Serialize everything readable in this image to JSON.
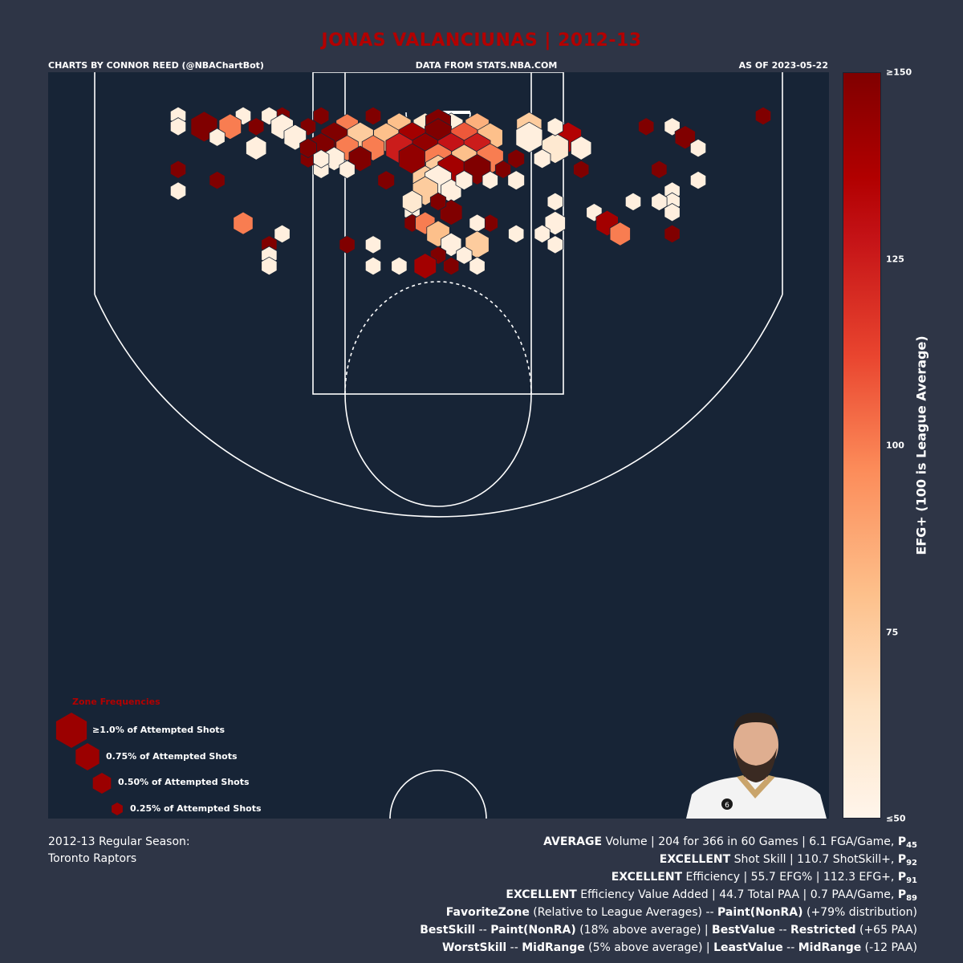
{
  "header": {
    "title": "JONAS VALANCIUNAS | 2012-13",
    "credit_left": "CHARTS BY CONNOR REED (@NBAChartBot)",
    "credit_center": "DATA FROM STATS.NBA.COM",
    "credit_right": "AS OF 2023-05-22"
  },
  "colorbar": {
    "label": "EFG+ (100 is League Average)",
    "ticks": [
      {
        "value": 150,
        "text": "≥150"
      },
      {
        "value": 125,
        "text": "125"
      },
      {
        "value": 100,
        "text": "100"
      },
      {
        "value": 75,
        "text": "75"
      },
      {
        "value": 50,
        "text": "≤50"
      }
    ],
    "range": [
      50,
      150
    ]
  },
  "legend": {
    "title": "Zone Frequencies",
    "items": [
      {
        "label": "≥1.0% of Attempted Shots",
        "freq": 1.0
      },
      {
        "label": "0.75% of Attempted Shots",
        "freq": 0.75
      },
      {
        "label": "0.50% of Attempted Shots",
        "freq": 0.5
      },
      {
        "label": "0.25% of Attempted Shots",
        "freq": 0.25
      }
    ],
    "color": "#9b0000"
  },
  "footer": {
    "season_line1": "2012-13 Regular Season:",
    "season_line2": "Toronto Raptors"
  },
  "stats": {
    "l1": {
      "b1": "AVERAGE",
      "t1": " Volume | 204 for 366 in 60 Games | 6.1 FGA/Game, ",
      "p": "P",
      "sub": "45"
    },
    "l2": {
      "b1": "EXCELLENT",
      "t1": " Shot Skill | 110.7 ShotSkill+, ",
      "p": "P",
      "sub": "92"
    },
    "l3": {
      "b1": "EXCELLENT",
      "t1": " Efficiency | 55.7 EFG% | 112.3 EFG+, ",
      "p": "P",
      "sub": "91"
    },
    "l4": {
      "b1": "EXCELLENT",
      "t1": " Efficiency Value Added | 44.7 Total PAA | 0.7 PAA/Game, ",
      "p": "P",
      "sub": "89"
    },
    "l5": {
      "b1": "FavoriteZone",
      "t1": " (Relative to League Averages) -- ",
      "b2": "Paint(NonRA)",
      "t2": " (+79% distribution)"
    },
    "l6": {
      "b1": "BestSkill",
      "t1": " -- ",
      "b2": "Paint(NonRA)",
      "t2": " (18% above average) | ",
      "b3": "BestValue",
      "t3": " -- ",
      "b4": "Restricted",
      "t4": " (+65 PAA)"
    },
    "l7": {
      "b1": "WorstSkill",
      "t1": " -- ",
      "b2": "MidRange",
      "t2": " (5% above average) | ",
      "b3": "LeastValue",
      "t3": " -- ",
      "b4": "MidRange",
      "t4": " (-12 PAA)"
    }
  },
  "colors": {
    "background": "#2e3546",
    "court": "#172436",
    "lines": "#ffffff",
    "title": "#b30000"
  },
  "chart_data": {
    "type": "heatmap",
    "subtype": "hexbin shot chart",
    "title": "JONAS VALANCIUNAS | 2012-13",
    "color_metric": "EFG+",
    "size_metric": "share of attempted shots (%)",
    "hexes": [
      {
        "x": 0,
        "y": 285,
        "f": 0.12,
        "v": 150
      },
      {
        "x": -10,
        "y": 270,
        "f": 0.8,
        "v": 62
      },
      {
        "x": 10,
        "y": 270,
        "f": 0.8,
        "v": 55
      },
      {
        "x": -30,
        "y": 270,
        "f": 0.8,
        "v": 80
      },
      {
        "x": 30,
        "y": 270,
        "f": 0.8,
        "v": 85
      },
      {
        "x": 0,
        "y": 275,
        "f": 0.9,
        "v": 150
      },
      {
        "x": 0,
        "y": 260,
        "f": 1.0,
        "v": 155
      },
      {
        "x": -20,
        "y": 255,
        "f": 1.0,
        "v": 140
      },
      {
        "x": 20,
        "y": 255,
        "f": 1.0,
        "v": 108
      },
      {
        "x": -40,
        "y": 255,
        "f": 0.9,
        "v": 80
      },
      {
        "x": 40,
        "y": 255,
        "f": 0.9,
        "v": 80
      },
      {
        "x": -10,
        "y": 240,
        "f": 1.0,
        "v": 145
      },
      {
        "x": 10,
        "y": 240,
        "f": 1.0,
        "v": 128
      },
      {
        "x": -30,
        "y": 240,
        "f": 1.0,
        "v": 125
      },
      {
        "x": 30,
        "y": 240,
        "f": 1.0,
        "v": 125
      },
      {
        "x": -20,
        "y": 225,
        "f": 1.0,
        "v": 145
      },
      {
        "x": 0,
        "y": 225,
        "f": 1.0,
        "v": 100
      },
      {
        "x": 20,
        "y": 225,
        "f": 0.9,
        "v": 80
      },
      {
        "x": 40,
        "y": 225,
        "f": 1.0,
        "v": 100
      },
      {
        "x": 0,
        "y": 210,
        "f": 0.9,
        "v": 75
      },
      {
        "x": 10,
        "y": 210,
        "f": 1.0,
        "v": 140
      },
      {
        "x": 30,
        "y": 210,
        "f": 1.0,
        "v": 155
      },
      {
        "x": -10,
        "y": 195,
        "f": 0.9,
        "v": 75
      },
      {
        "x": 0,
        "y": 195,
        "f": 1.0,
        "v": 55
      },
      {
        "x": -10,
        "y": 180,
        "f": 0.9,
        "v": 75
      },
      {
        "x": 10,
        "y": 180,
        "f": 0.6,
        "v": 55
      },
      {
        "x": -20,
        "y": 165,
        "f": 0.55,
        "v": 60
      },
      {
        "x": 10,
        "y": 150,
        "f": 0.7,
        "v": 150
      },
      {
        "x": -70,
        "y": 270,
        "f": 0.7,
        "v": 100
      },
      {
        "x": 70,
        "y": 270,
        "f": 0.9,
        "v": 75
      },
      {
        "x": -60,
        "y": 255,
        "f": 1.0,
        "v": 75
      },
      {
        "x": 70,
        "y": 255,
        "f": 1.0,
        "v": 55
      },
      {
        "x": -80,
        "y": 255,
        "f": 1.0,
        "v": 150
      },
      {
        "x": 100,
        "y": 255,
        "f": 1.0,
        "v": 135
      },
      {
        "x": -90,
        "y": 240,
        "f": 1.0,
        "v": 150
      },
      {
        "x": -70,
        "y": 240,
        "f": 0.7,
        "v": 100
      },
      {
        "x": -50,
        "y": 240,
        "f": 0.7,
        "v": 100
      },
      {
        "x": 90,
        "y": 240,
        "f": 1.0,
        "v": 60
      },
      {
        "x": 110,
        "y": 240,
        "f": 0.6,
        "v": 55
      },
      {
        "x": -60,
        "y": 225,
        "f": 0.7,
        "v": 150
      },
      {
        "x": 60,
        "y": 225,
        "f": 0.4,
        "v": 150
      },
      {
        "x": -80,
        "y": 225,
        "f": 0.6,
        "v": 55
      },
      {
        "x": -100,
        "y": 225,
        "f": 0.35,
        "v": 150
      },
      {
        "x": 80,
        "y": 225,
        "f": 0.4,
        "v": 55
      },
      {
        "x": 50,
        "y": 210,
        "f": 0.35,
        "v": 150
      },
      {
        "x": 110,
        "y": 210,
        "f": 0.35,
        "v": 150
      },
      {
        "x": -90,
        "y": 210,
        "f": 0.35,
        "v": 55
      },
      {
        "x": -70,
        "y": 210,
        "f": 0.35,
        "v": 55
      },
      {
        "x": -40,
        "y": 195,
        "f": 0.4,
        "v": 150
      },
      {
        "x": 20,
        "y": 195,
        "f": 0.4,
        "v": 55
      },
      {
        "x": 40,
        "y": 195,
        "f": 0.35,
        "v": 55
      },
      {
        "x": 60,
        "y": 195,
        "f": 0.4,
        "v": 55
      },
      {
        "x": -150,
        "y": 285,
        "f": 0.35,
        "v": 55
      },
      {
        "x": -120,
        "y": 285,
        "f": 0.35,
        "v": 150
      },
      {
        "x": -130,
        "y": 285,
        "f": 0.35,
        "v": 55
      },
      {
        "x": -90,
        "y": 285,
        "f": 0.35,
        "v": 150
      },
      {
        "x": -50,
        "y": 285,
        "f": 0.35,
        "v": 150
      },
      {
        "x": -200,
        "y": 285,
        "f": 0.35,
        "v": 55
      },
      {
        "x": -180,
        "y": 270,
        "f": 1.0,
        "v": 150
      },
      {
        "x": -160,
        "y": 270,
        "f": 0.7,
        "v": 100
      },
      {
        "x": -140,
        "y": 270,
        "f": 0.35,
        "v": 150
      },
      {
        "x": -120,
        "y": 270,
        "f": 0.7,
        "v": 55
      },
      {
        "x": -100,
        "y": 270,
        "f": 0.35,
        "v": 150
      },
      {
        "x": -200,
        "y": 270,
        "f": 0.35,
        "v": 55
      },
      {
        "x": -170,
        "y": 255,
        "f": 0.35,
        "v": 55
      },
      {
        "x": -110,
        "y": 255,
        "f": 0.7,
        "v": 55
      },
      {
        "x": -140,
        "y": 240,
        "f": 0.6,
        "v": 55
      },
      {
        "x": -100,
        "y": 240,
        "f": 0.4,
        "v": 150
      },
      {
        "x": -90,
        "y": 225,
        "f": 0.35,
        "v": 55
      },
      {
        "x": -200,
        "y": 210,
        "f": 0.35,
        "v": 150
      },
      {
        "x": -170,
        "y": 195,
        "f": 0.35,
        "v": 150
      },
      {
        "x": -200,
        "y": 180,
        "f": 0.35,
        "v": 55
      },
      {
        "x": 250,
        "y": 285,
        "f": 0.35,
        "v": 150
      },
      {
        "x": 160,
        "y": 270,
        "f": 0.35,
        "v": 150
      },
      {
        "x": 180,
        "y": 270,
        "f": 0.35,
        "v": 55
      },
      {
        "x": 90,
        "y": 270,
        "f": 0.35,
        "v": 55
      },
      {
        "x": 190,
        "y": 255,
        "f": 0.6,
        "v": 150
      },
      {
        "x": 200,
        "y": 240,
        "f": 0.35,
        "v": 55
      },
      {
        "x": 110,
        "y": 210,
        "f": 0.35,
        "v": 150
      },
      {
        "x": 170,
        "y": 210,
        "f": 0.35,
        "v": 150
      },
      {
        "x": 200,
        "y": 195,
        "f": 0.35,
        "v": 55
      },
      {
        "x": 180,
        "y": 180,
        "f": 0.35,
        "v": 55
      },
      {
        "x": 180,
        "y": 165,
        "f": 0.35,
        "v": 55
      },
      {
        "x": 150,
        "y": 165,
        "f": 0.35,
        "v": 55
      },
      {
        "x": 170,
        "y": 165,
        "f": 0.35,
        "v": 55
      },
      {
        "x": 90,
        "y": 165,
        "f": 0.35,
        "v": 55
      },
      {
        "x": 120,
        "y": 150,
        "f": 0.35,
        "v": 55
      },
      {
        "x": 180,
        "y": 150,
        "f": 0.35,
        "v": 55
      },
      {
        "x": 130,
        "y": 135,
        "f": 0.7,
        "v": 140
      },
      {
        "x": 140,
        "y": 120,
        "f": 0.6,
        "v": 100
      },
      {
        "x": 180,
        "y": 120,
        "f": 0.35,
        "v": 150
      },
      {
        "x": 90,
        "y": 135,
        "f": 0.6,
        "v": 55
      },
      {
        "x": 80,
        "y": 120,
        "f": 0.35,
        "v": 55
      },
      {
        "x": 90,
        "y": 105,
        "f": 0.35,
        "v": 55
      },
      {
        "x": -150,
        "y": 135,
        "f": 0.55,
        "v": 100
      },
      {
        "x": -120,
        "y": 120,
        "f": 0.35,
        "v": 55
      },
      {
        "x": -130,
        "y": 105,
        "f": 0.35,
        "v": 150
      },
      {
        "x": -130,
        "y": 90,
        "f": 0.35,
        "v": 55
      },
      {
        "x": -70,
        "y": 105,
        "f": 0.35,
        "v": 150
      },
      {
        "x": -50,
        "y": 105,
        "f": 0.35,
        "v": 55
      },
      {
        "x": -20,
        "y": 150,
        "f": 0.35,
        "v": 55
      },
      {
        "x": -20,
        "y": 165,
        "f": 0.55,
        "v": 60
      },
      {
        "x": 0,
        "y": 165,
        "f": 0.35,
        "v": 150
      },
      {
        "x": -20,
        "y": 135,
        "f": 0.35,
        "v": 150
      },
      {
        "x": 40,
        "y": 135,
        "f": 0.35,
        "v": 150
      },
      {
        "x": -10,
        "y": 135,
        "f": 0.55,
        "v": 100
      },
      {
        "x": 30,
        "y": 135,
        "f": 0.35,
        "v": 55
      },
      {
        "x": 0,
        "y": 120,
        "f": 0.75,
        "v": 80
      },
      {
        "x": 60,
        "y": 120,
        "f": 0.35,
        "v": 55
      },
      {
        "x": 10,
        "y": 105,
        "f": 0.6,
        "v": 55
      },
      {
        "x": 30,
        "y": 105,
        "f": 0.8,
        "v": 75
      },
      {
        "x": 0,
        "y": 90,
        "f": 0.35,
        "v": 150
      },
      {
        "x": 20,
        "y": 90,
        "f": 0.35,
        "v": 55
      },
      {
        "x": -10,
        "y": 75,
        "f": 0.7,
        "v": 140
      },
      {
        "x": -30,
        "y": 75,
        "f": 0.35,
        "v": 55
      },
      {
        "x": -50,
        "y": 75,
        "f": 0.35,
        "v": 55
      },
      {
        "x": 10,
        "y": 75,
        "f": 0.35,
        "v": 150
      },
      {
        "x": 30,
        "y": 75,
        "f": 0.35,
        "v": 55
      },
      {
        "x": -130,
        "y": 75,
        "f": 0.35,
        "v": 55
      }
    ]
  }
}
